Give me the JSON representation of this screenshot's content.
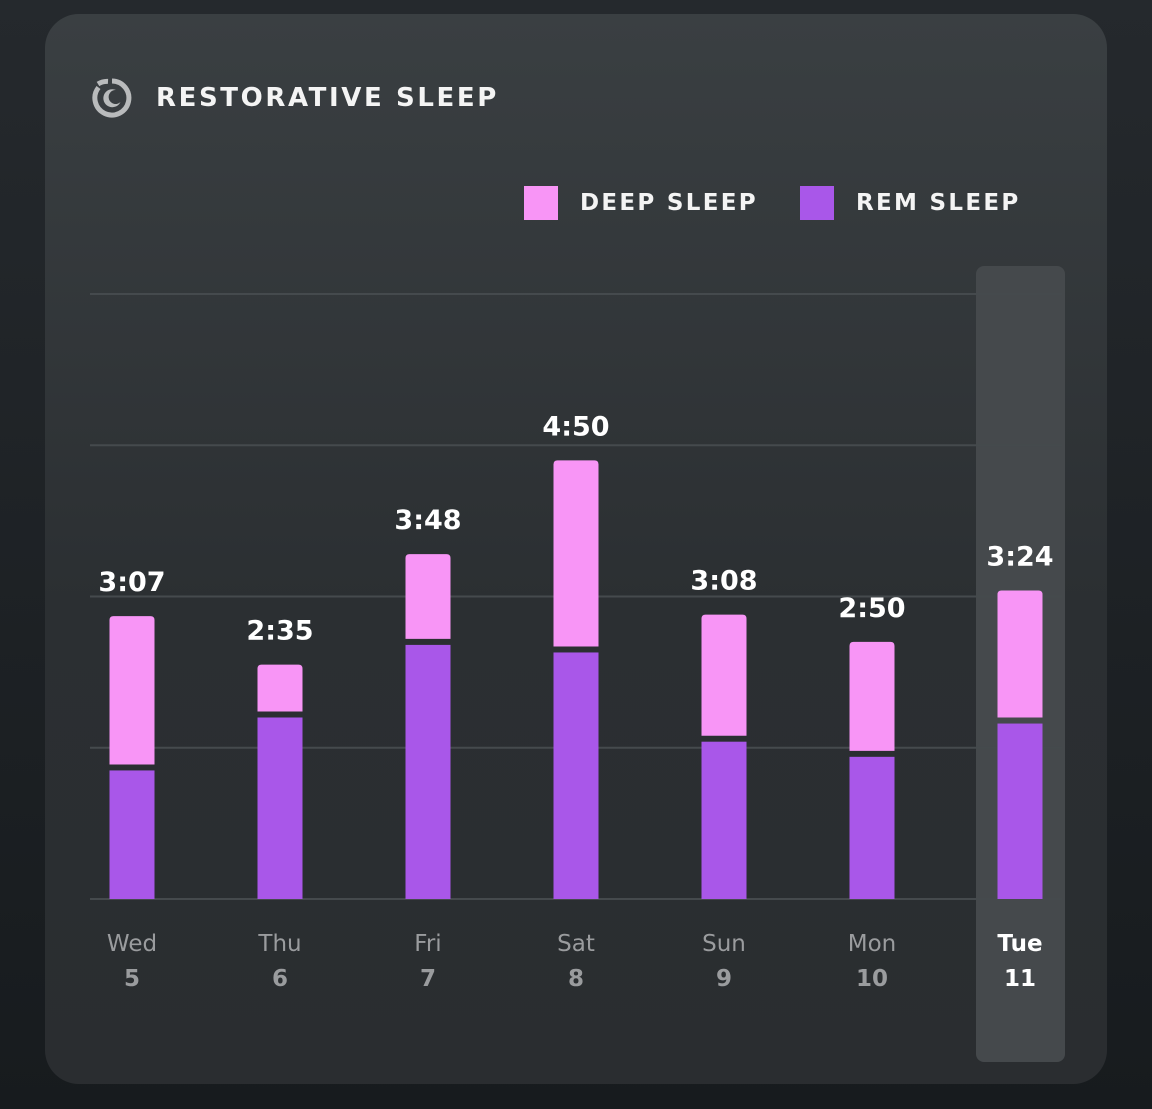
{
  "header": {
    "title": "RESTORATIVE SLEEP",
    "icon": "moon-clock-icon"
  },
  "legend": {
    "deep_label": "DEEP SLEEP",
    "rem_label": "REM SLEEP",
    "deep_color": "#f895f6",
    "rem_color": "#a957e9"
  },
  "colors": {
    "background": "#1d2124",
    "card": "#33373a",
    "gridline": "#454a4d",
    "highlight_column": "#45494c",
    "day_label": "#9a9c9e",
    "day_label_selected": "#ffffff",
    "value_label": "#ffffff"
  },
  "chart_data": {
    "type": "bar",
    "stacked": true,
    "y_unit": "minutes",
    "ylim": [
      0,
      400
    ],
    "y_gridlines": [
      0,
      100,
      200,
      300,
      400
    ],
    "grid": true,
    "legend_position": "top-right",
    "selected_index": 6,
    "categories": [
      {
        "day": "Wed",
        "date": "5"
      },
      {
        "day": "Thu",
        "date": "6"
      },
      {
        "day": "Fri",
        "date": "7"
      },
      {
        "day": "Sat",
        "date": "8"
      },
      {
        "day": "Sun",
        "date": "9"
      },
      {
        "day": "Mon",
        "date": "10"
      },
      {
        "day": "Tue",
        "date": "11"
      }
    ],
    "totals": [
      "3:07",
      "2:35",
      "3:48",
      "4:50",
      "3:08",
      "2:50",
      "3:24"
    ],
    "series": [
      {
        "name": "REM SLEEP",
        "values": [
          85,
          120,
          168,
          163,
          104,
          94,
          116
        ]
      },
      {
        "name": "DEEP SLEEP",
        "values": [
          102,
          35,
          60,
          127,
          84,
          76,
          88
        ]
      }
    ]
  }
}
